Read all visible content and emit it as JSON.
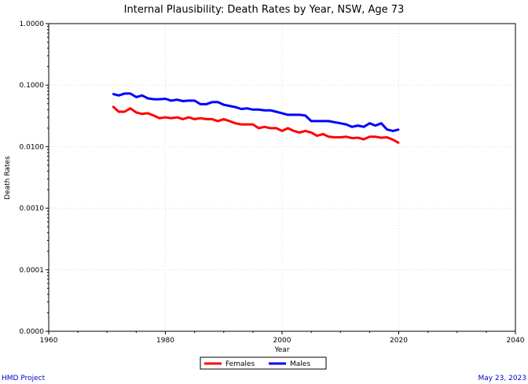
{
  "footer": {
    "left": "HMD Project",
    "right": "May 23, 2023"
  },
  "chart_data": {
    "type": "line",
    "title": "Internal Plausibility: Death Rates by Year, NSW, Age 73",
    "xlabel": "Year",
    "ylabel": "Death Rates",
    "xlim": [
      1960,
      2040
    ],
    "ylim": [
      1e-05,
      1
    ],
    "yscale": "log",
    "grid": true,
    "legend_position": "bottom-center",
    "x_ticks": [
      1960,
      1980,
      2000,
      2020,
      2040
    ],
    "y_ticks": [
      {
        "value": 1,
        "label": "1.0000"
      },
      {
        "value": 0.1,
        "label": "0.1000"
      },
      {
        "value": 0.01,
        "label": "0.0100"
      },
      {
        "value": 0.001,
        "label": "0.0010"
      },
      {
        "value": 0.0001,
        "label": "0.0001"
      },
      {
        "value": 1e-05,
        "label": "0.0000"
      }
    ],
    "x": [
      1971,
      1972,
      1973,
      1974,
      1975,
      1976,
      1977,
      1978,
      1979,
      1980,
      1981,
      1982,
      1983,
      1984,
      1985,
      1986,
      1987,
      1988,
      1989,
      1990,
      1991,
      1992,
      1993,
      1994,
      1995,
      1996,
      1997,
      1998,
      1999,
      2000,
      2001,
      2002,
      2003,
      2004,
      2005,
      2006,
      2007,
      2008,
      2009,
      2010,
      2011,
      2012,
      2013,
      2014,
      2015,
      2016,
      2017,
      2018,
      2019,
      2020
    ],
    "series": [
      {
        "name": "Females",
        "color": "#ff0000",
        "values": [
          0.045,
          0.037,
          0.037,
          0.042,
          0.036,
          0.034,
          0.035,
          0.032,
          0.029,
          0.03,
          0.029,
          0.03,
          0.028,
          0.03,
          0.028,
          0.029,
          0.028,
          0.028,
          0.026,
          0.028,
          0.026,
          0.024,
          0.023,
          0.023,
          0.023,
          0.02,
          0.021,
          0.02,
          0.02,
          0.018,
          0.02,
          0.018,
          0.017,
          0.018,
          0.017,
          0.015,
          0.016,
          0.0145,
          0.0142,
          0.0142,
          0.0145,
          0.0138,
          0.014,
          0.0132,
          0.0145,
          0.0145,
          0.014,
          0.0142,
          0.013,
          0.0115
        ]
      },
      {
        "name": "Males",
        "color": "#0000ff",
        "values": [
          0.072,
          0.068,
          0.073,
          0.073,
          0.064,
          0.068,
          0.061,
          0.059,
          0.059,
          0.06,
          0.056,
          0.058,
          0.055,
          0.056,
          0.056,
          0.049,
          0.049,
          0.053,
          0.053,
          0.048,
          0.046,
          0.044,
          0.041,
          0.042,
          0.04,
          0.04,
          0.039,
          0.039,
          0.037,
          0.035,
          0.033,
          0.033,
          0.033,
          0.032,
          0.026,
          0.026,
          0.026,
          0.026,
          0.025,
          0.024,
          0.023,
          0.021,
          0.022,
          0.021,
          0.024,
          0.022,
          0.024,
          0.019,
          0.018,
          0.019
        ]
      }
    ]
  }
}
